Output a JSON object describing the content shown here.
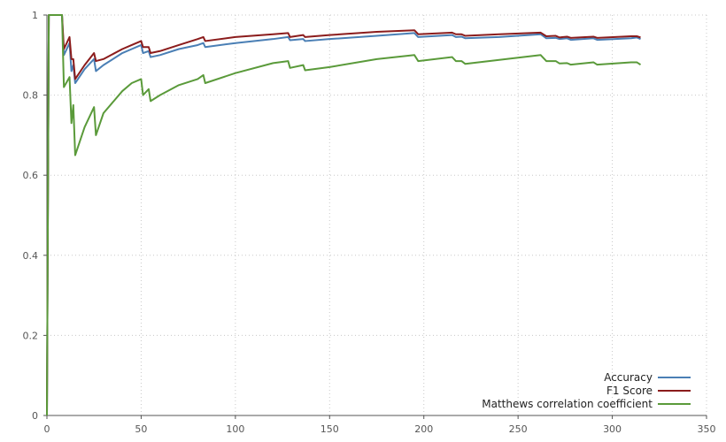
{
  "chart_data": {
    "type": "line",
    "xlim": [
      0,
      350
    ],
    "ylim": [
      0,
      1
    ],
    "x_ticks": [
      0,
      50,
      100,
      150,
      200,
      250,
      300,
      350
    ],
    "y_ticks": [
      0,
      0.2,
      0.4,
      0.6,
      0.8,
      1
    ],
    "x_tick_labels": [
      "0",
      "50",
      "100",
      "150",
      "200",
      "250",
      "300",
      "350"
    ],
    "y_tick_labels": [
      "0",
      "0.2",
      "0.4",
      "0.6",
      "0.8",
      "1"
    ],
    "grid": true,
    "legend_position": "bottom-right",
    "series": [
      {
        "name": "Accuracy",
        "color": "#4a7fb5",
        "points": [
          [
            0,
            0
          ],
          [
            1,
            1
          ],
          [
            8,
            1
          ],
          [
            9,
            0.9
          ],
          [
            12,
            0.93
          ],
          [
            13,
            0.86
          ],
          [
            14,
            0.875
          ],
          [
            15,
            0.83
          ],
          [
            20,
            0.865
          ],
          [
            25,
            0.89
          ],
          [
            26,
            0.86
          ],
          [
            30,
            0.875
          ],
          [
            40,
            0.905
          ],
          [
            45,
            0.915
          ],
          [
            50,
            0.925
          ],
          [
            51,
            0.905
          ],
          [
            54,
            0.91
          ],
          [
            55,
            0.895
          ],
          [
            60,
            0.9
          ],
          [
            70,
            0.915
          ],
          [
            80,
            0.925
          ],
          [
            83,
            0.93
          ],
          [
            84,
            0.92
          ],
          [
            100,
            0.93
          ],
          [
            120,
            0.94
          ],
          [
            128,
            0.945
          ],
          [
            129,
            0.937
          ],
          [
            136,
            0.94
          ],
          [
            137,
            0.935
          ],
          [
            150,
            0.94
          ],
          [
            175,
            0.948
          ],
          [
            195,
            0.955
          ],
          [
            197,
            0.945
          ],
          [
            215,
            0.95
          ],
          [
            217,
            0.945
          ],
          [
            220,
            0.946
          ],
          [
            222,
            0.942
          ],
          [
            240,
            0.945
          ],
          [
            262,
            0.952
          ],
          [
            265,
            0.942
          ],
          [
            270,
            0.943
          ],
          [
            272,
            0.94
          ],
          [
            276,
            0.942
          ],
          [
            278,
            0.938
          ],
          [
            290,
            0.942
          ],
          [
            292,
            0.938
          ],
          [
            310,
            0.942
          ],
          [
            313,
            0.944
          ],
          [
            315,
            0.94
          ]
        ]
      },
      {
        "name": "F1 Score",
        "color": "#8b1c1c",
        "points": [
          [
            0,
            0
          ],
          [
            1,
            1
          ],
          [
            8,
            1
          ],
          [
            9,
            0.915
          ],
          [
            12,
            0.945
          ],
          [
            13,
            0.89
          ],
          [
            14,
            0.89
          ],
          [
            15,
            0.84
          ],
          [
            20,
            0.875
          ],
          [
            25,
            0.905
          ],
          [
            26,
            0.885
          ],
          [
            30,
            0.89
          ],
          [
            40,
            0.915
          ],
          [
            45,
            0.925
          ],
          [
            50,
            0.935
          ],
          [
            51,
            0.92
          ],
          [
            54,
            0.92
          ],
          [
            55,
            0.905
          ],
          [
            60,
            0.91
          ],
          [
            70,
            0.925
          ],
          [
            80,
            0.94
          ],
          [
            83,
            0.945
          ],
          [
            84,
            0.935
          ],
          [
            100,
            0.945
          ],
          [
            120,
            0.952
          ],
          [
            128,
            0.955
          ],
          [
            129,
            0.945
          ],
          [
            136,
            0.95
          ],
          [
            137,
            0.945
          ],
          [
            150,
            0.95
          ],
          [
            175,
            0.958
          ],
          [
            195,
            0.962
          ],
          [
            197,
            0.952
          ],
          [
            215,
            0.956
          ],
          [
            217,
            0.952
          ],
          [
            220,
            0.952
          ],
          [
            222,
            0.948
          ],
          [
            240,
            0.952
          ],
          [
            262,
            0.956
          ],
          [
            265,
            0.947
          ],
          [
            270,
            0.948
          ],
          [
            272,
            0.944
          ],
          [
            276,
            0.946
          ],
          [
            278,
            0.943
          ],
          [
            290,
            0.946
          ],
          [
            292,
            0.943
          ],
          [
            310,
            0.947
          ],
          [
            313,
            0.947
          ],
          [
            315,
            0.944
          ]
        ]
      },
      {
        "name": "Matthews correlation coefficient",
        "color": "#5a9a3a",
        "points": [
          [
            0,
            0
          ],
          [
            1,
            1
          ],
          [
            8,
            1
          ],
          [
            9,
            0.82
          ],
          [
            12,
            0.845
          ],
          [
            13,
            0.73
          ],
          [
            14,
            0.775
          ],
          [
            15,
            0.65
          ],
          [
            20,
            0.72
          ],
          [
            25,
            0.77
          ],
          [
            26,
            0.7
          ],
          [
            30,
            0.755
          ],
          [
            40,
            0.81
          ],
          [
            45,
            0.83
          ],
          [
            50,
            0.84
          ],
          [
            51,
            0.8
          ],
          [
            54,
            0.815
          ],
          [
            55,
            0.785
          ],
          [
            60,
            0.8
          ],
          [
            70,
            0.825
          ],
          [
            80,
            0.84
          ],
          [
            83,
            0.85
          ],
          [
            84,
            0.83
          ],
          [
            100,
            0.855
          ],
          [
            120,
            0.88
          ],
          [
            128,
            0.885
          ],
          [
            129,
            0.868
          ],
          [
            136,
            0.875
          ],
          [
            137,
            0.862
          ],
          [
            150,
            0.87
          ],
          [
            175,
            0.89
          ],
          [
            195,
            0.9
          ],
          [
            197,
            0.885
          ],
          [
            215,
            0.895
          ],
          [
            217,
            0.885
          ],
          [
            220,
            0.885
          ],
          [
            222,
            0.878
          ],
          [
            240,
            0.888
          ],
          [
            262,
            0.9
          ],
          [
            265,
            0.885
          ],
          [
            270,
            0.885
          ],
          [
            272,
            0.879
          ],
          [
            276,
            0.88
          ],
          [
            278,
            0.876
          ],
          [
            290,
            0.882
          ],
          [
            292,
            0.876
          ],
          [
            310,
            0.882
          ],
          [
            313,
            0.882
          ],
          [
            315,
            0.876
          ]
        ]
      }
    ]
  }
}
